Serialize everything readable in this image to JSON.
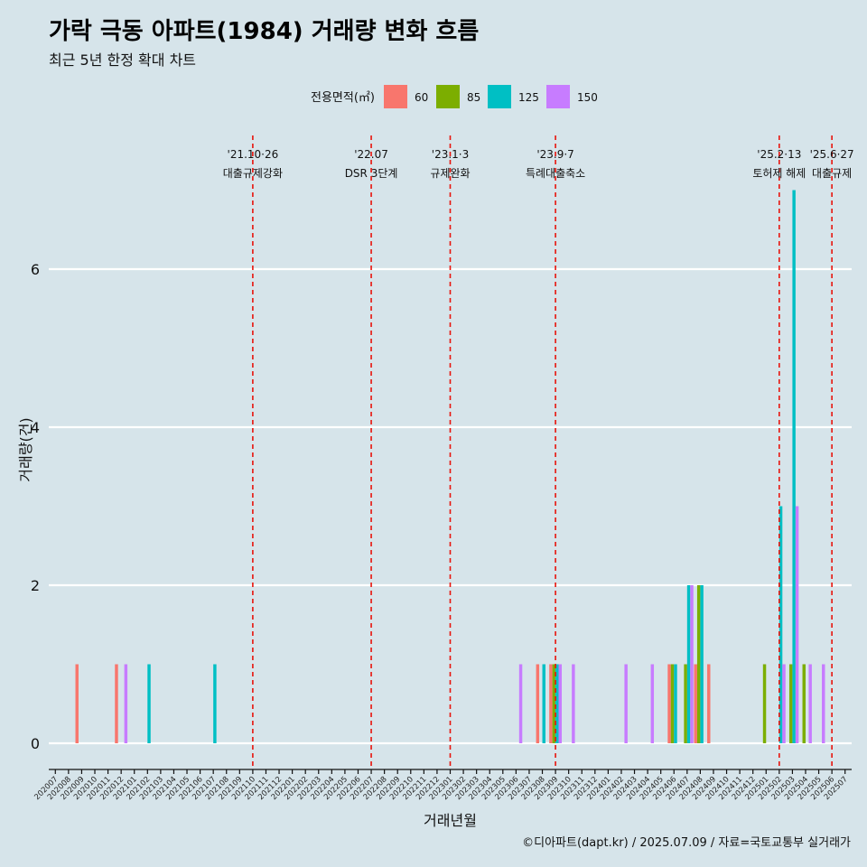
{
  "title": "가락 극동 아파트(1984) 거래량 변화 흐름",
  "subtitle": "최근 5년 한정 확대 차트",
  "caption": "©디아파트(dapt.kr) / 2025.07.09 / 자료=국토교통부 실거래가",
  "colors": {
    "background": "#d6e4ea",
    "gridline": "#ffffff",
    "vline": "#e8140c"
  },
  "chart_data": {
    "type": "bar",
    "xlabel": "거래년월",
    "ylabel": "거래량(건)",
    "ylim": [
      0,
      7.3
    ],
    "yticks": [
      0,
      2,
      4,
      6
    ],
    "grid": true,
    "legend": {
      "title": "전용면적(㎡)",
      "placement": "top",
      "items": [
        {
          "name": "60",
          "color": "#f8766d"
        },
        {
          "name": "85",
          "color": "#7cae00"
        },
        {
          "name": "125",
          "color": "#00bfc4"
        },
        {
          "name": "150",
          "color": "#c77cff"
        }
      ]
    },
    "categories": [
      "202007",
      "202008",
      "202009",
      "202010",
      "202011",
      "202012",
      "202101",
      "202102",
      "202103",
      "202104",
      "202105",
      "202106",
      "202107",
      "202108",
      "202109",
      "202110",
      "202111",
      "202112",
      "202201",
      "202202",
      "202203",
      "202204",
      "202205",
      "202206",
      "202207",
      "202208",
      "202209",
      "202210",
      "202211",
      "202212",
      "202301",
      "202302",
      "202303",
      "202304",
      "202305",
      "202306",
      "202307",
      "202308",
      "202309",
      "202310",
      "202311",
      "202312",
      "202401",
      "202402",
      "202403",
      "202404",
      "202405",
      "202406",
      "202407",
      "202408",
      "202409",
      "202410",
      "202411",
      "202412",
      "202501",
      "202502",
      "202503",
      "202504",
      "202505",
      "202506",
      "202507"
    ],
    "series": [
      {
        "name": "60",
        "values": [
          0,
          0,
          1,
          0,
          0,
          1,
          0,
          0,
          0,
          0,
          0,
          0,
          0,
          0,
          0,
          0,
          0,
          0,
          0,
          0,
          0,
          0,
          0,
          0,
          0,
          0,
          0,
          0,
          0,
          0,
          0,
          0,
          0,
          0,
          0,
          0,
          0,
          1,
          1,
          0,
          0,
          0,
          0,
          0,
          0,
          0,
          0,
          1,
          0,
          1,
          1,
          0,
          0,
          0,
          0,
          0,
          0,
          0,
          0,
          0,
          0
        ]
      },
      {
        "name": "85",
        "values": [
          0,
          0,
          0,
          0,
          0,
          0,
          0,
          0,
          0,
          0,
          0,
          0,
          0,
          0,
          0,
          0,
          0,
          0,
          0,
          0,
          0,
          0,
          0,
          0,
          0,
          0,
          0,
          0,
          0,
          0,
          0,
          0,
          0,
          0,
          0,
          0,
          0,
          0,
          1,
          0,
          0,
          0,
          0,
          0,
          0,
          0,
          0,
          1,
          1,
          2,
          0,
          0,
          0,
          0,
          1,
          0,
          1,
          1,
          0,
          0,
          0
        ]
      },
      {
        "name": "125",
        "values": [
          0,
          0,
          0,
          0,
          0,
          0,
          0,
          1,
          0,
          0,
          0,
          0,
          1,
          0,
          0,
          0,
          0,
          0,
          0,
          0,
          0,
          0,
          0,
          0,
          0,
          0,
          0,
          0,
          0,
          0,
          0,
          0,
          0,
          0,
          0,
          0,
          0,
          1,
          1,
          0,
          0,
          0,
          0,
          0,
          0,
          0,
          0,
          1,
          2,
          2,
          0,
          0,
          0,
          0,
          0,
          3,
          7,
          0,
          0,
          0,
          0
        ]
      },
      {
        "name": "150",
        "values": [
          0,
          0,
          0,
          0,
          0,
          1,
          0,
          0,
          0,
          0,
          0,
          0,
          0,
          0,
          0,
          0,
          0,
          0,
          0,
          0,
          0,
          0,
          0,
          0,
          0,
          0,
          0,
          0,
          0,
          0,
          0,
          0,
          0,
          0,
          0,
          1,
          0,
          0,
          1,
          1,
          0,
          0,
          0,
          1,
          0,
          1,
          0,
          0,
          2,
          0,
          0,
          0,
          0,
          0,
          0,
          1,
          3,
          1,
          1,
          0,
          0
        ]
      }
    ],
    "annotations": [
      {
        "x": "202110",
        "date": "'21.10·26",
        "label": "대출규제강화"
      },
      {
        "x": "202207",
        "date": "'22.07",
        "label": "DSR 3단계"
      },
      {
        "x": "202301",
        "date": "'23.1·3",
        "label": "규제완화"
      },
      {
        "x": "202309",
        "date": "'23.9·7",
        "label": "특례대출축소"
      },
      {
        "x": "202502",
        "date": "'25.2·13",
        "label": "토허제 해제"
      },
      {
        "x": "202506",
        "date": "'25.6·27",
        "label": "대출규제"
      }
    ]
  }
}
